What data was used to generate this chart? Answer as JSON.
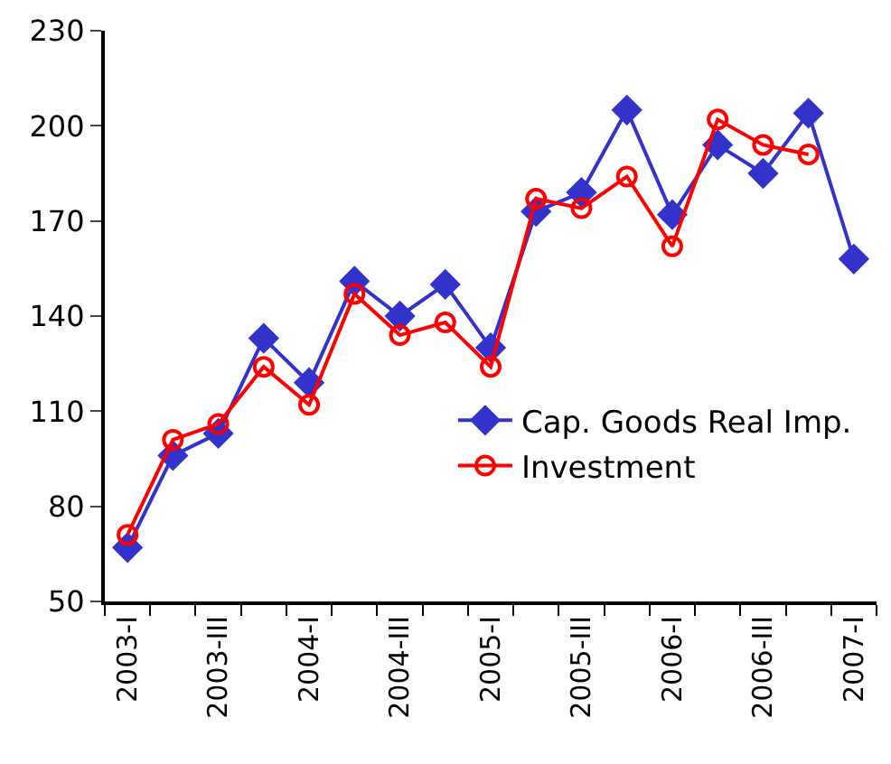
{
  "chart_data": {
    "type": "line",
    "categories": [
      "2003-I",
      null,
      "2003-III",
      null,
      "2004-I",
      null,
      "2004-III",
      null,
      "2005-I",
      null,
      "2005-III",
      null,
      "2006-I",
      null,
      "2006-III",
      null,
      "2007-I"
    ],
    "series": [
      {
        "name": "Cap. Goods Real Imp.",
        "color": "#3333cc",
        "marker": "diamond",
        "values": [
          67,
          96,
          103,
          133,
          119,
          151,
          140,
          150,
          130,
          173,
          179,
          205,
          172,
          194,
          185,
          204,
          158
        ]
      },
      {
        "name": "Investment",
        "color": "#ff0000",
        "marker": "circle",
        "values": [
          71,
          101,
          106,
          124,
          112,
          147,
          134,
          138,
          124,
          177,
          174,
          184,
          162,
          202,
          194,
          191,
          null
        ]
      }
    ],
    "ylim": [
      50,
      230
    ],
    "yticks": [
      50,
      80,
      110,
      140,
      170,
      200,
      230
    ],
    "grid": false,
    "legend": "bottom right",
    "line_style": "solid"
  }
}
